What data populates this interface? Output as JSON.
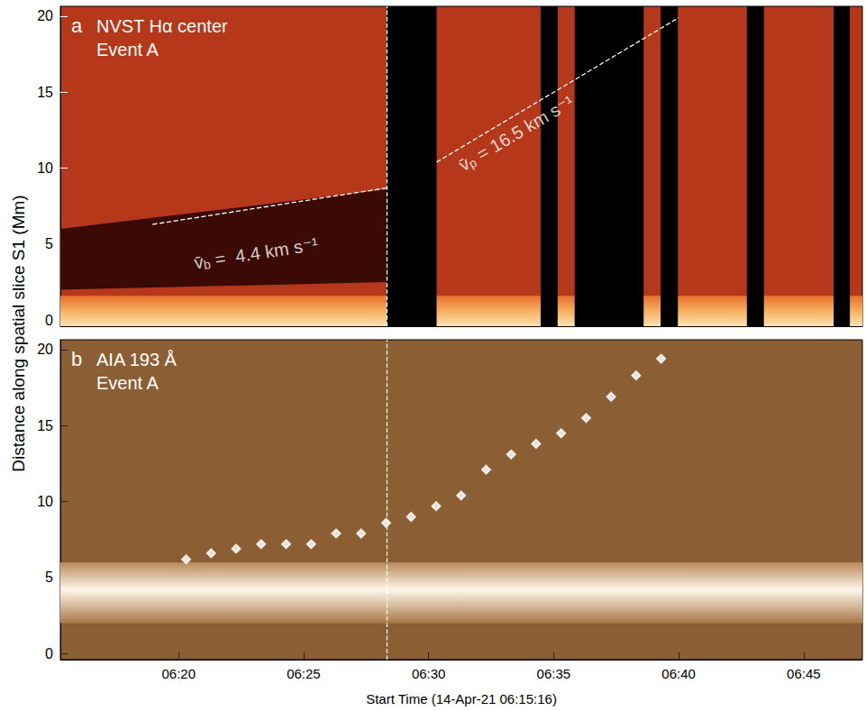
{
  "chart_data": [
    {
      "type": "line",
      "panel_label": "a",
      "title": "NVST Hα center",
      "subtitle": "Event A",
      "ylabel": "Distance along spatial slice S1 (Mm)",
      "xlim": [
        15.27,
        47.35
      ],
      "xticks": [
        {
          "value": 20,
          "label": "06:20"
        },
        {
          "value": 25,
          "label": "06:25"
        },
        {
          "value": 30,
          "label": "06:30"
        },
        {
          "value": 35,
          "label": "06:35"
        },
        {
          "value": 40,
          "label": "06:40"
        },
        {
          "value": 45,
          "label": "06:45"
        }
      ],
      "ylim": [
        -0.4,
        20.65
      ],
      "yticks": [
        0,
        5,
        10,
        15,
        20
      ],
      "tick_labels": "y",
      "marker_time": 28.32,
      "bright_band": [
        -0.4,
        1.6
      ],
      "dark_lane": {
        "x": [
          15.27,
          28.32
        ],
        "bottom": [
          2.0,
          2.5
        ],
        "top": [
          6.0,
          8.6
        ]
      },
      "data_gaps": [
        [
          28.32,
          30.32
        ],
        [
          34.48,
          35.16
        ],
        [
          35.84,
          38.6
        ],
        [
          39.28,
          39.97
        ],
        [
          42.73,
          43.41
        ],
        [
          46.2,
          46.85
        ]
      ],
      "series": [
        {
          "type": "line",
          "line_style": "dashed",
          "color": "#ffffff",
          "x": [
            18.96,
            28.32
          ],
          "values": [
            6.3,
            8.7
          ],
          "annotation": {
            "symbol": "v̄",
            "subscript": "b",
            "text": " =  4.4 km s⁻¹"
          }
        },
        {
          "type": "line",
          "line_style": "dashed",
          "color": "#ffffff",
          "x": [
            30.32,
            40.0
          ],
          "values": [
            10.4,
            19.9
          ],
          "annotation": {
            "symbol": "v̄",
            "subscript": "p",
            "text": " = 16.5 km s⁻¹"
          }
        }
      ]
    },
    {
      "type": "scatter",
      "panel_label": "b",
      "title": "AIA 193 Å",
      "subtitle": "Event A",
      "xlabel": "Start Time (14-Apr-21 06:15:16)",
      "xlim": [
        15.27,
        47.35
      ],
      "xticks": [
        {
          "value": 20,
          "label": "06:20"
        },
        {
          "value": 25,
          "label": "06:25"
        },
        {
          "value": 30,
          "label": "06:30"
        },
        {
          "value": 35,
          "label": "06:35"
        },
        {
          "value": 40,
          "label": "06:40"
        },
        {
          "value": 45,
          "label": "06:45"
        }
      ],
      "ylim": [
        -0.4,
        20.65
      ],
      "yticks": [
        0,
        5,
        10,
        15,
        20
      ],
      "marker_time": 28.32,
      "bright_band": [
        2.0,
        6.0
      ],
      "series": [
        {
          "type": "scatter",
          "marker": "diamond",
          "color": "#ffffff",
          "x": [
            20.3,
            21.3,
            22.3,
            23.3,
            24.3,
            25.3,
            26.3,
            27.3,
            28.3,
            29.3,
            30.3,
            31.3,
            32.3,
            33.3,
            34.3,
            35.3,
            36.3,
            37.3,
            38.3,
            39.3
          ],
          "values": [
            6.2,
            6.6,
            6.9,
            7.2,
            7.2,
            7.2,
            7.9,
            7.9,
            8.6,
            9.0,
            9.7,
            10.4,
            12.1,
            13.1,
            13.8,
            14.5,
            15.5,
            16.9,
            18.3,
            19.4
          ]
        }
      ]
    }
  ]
}
